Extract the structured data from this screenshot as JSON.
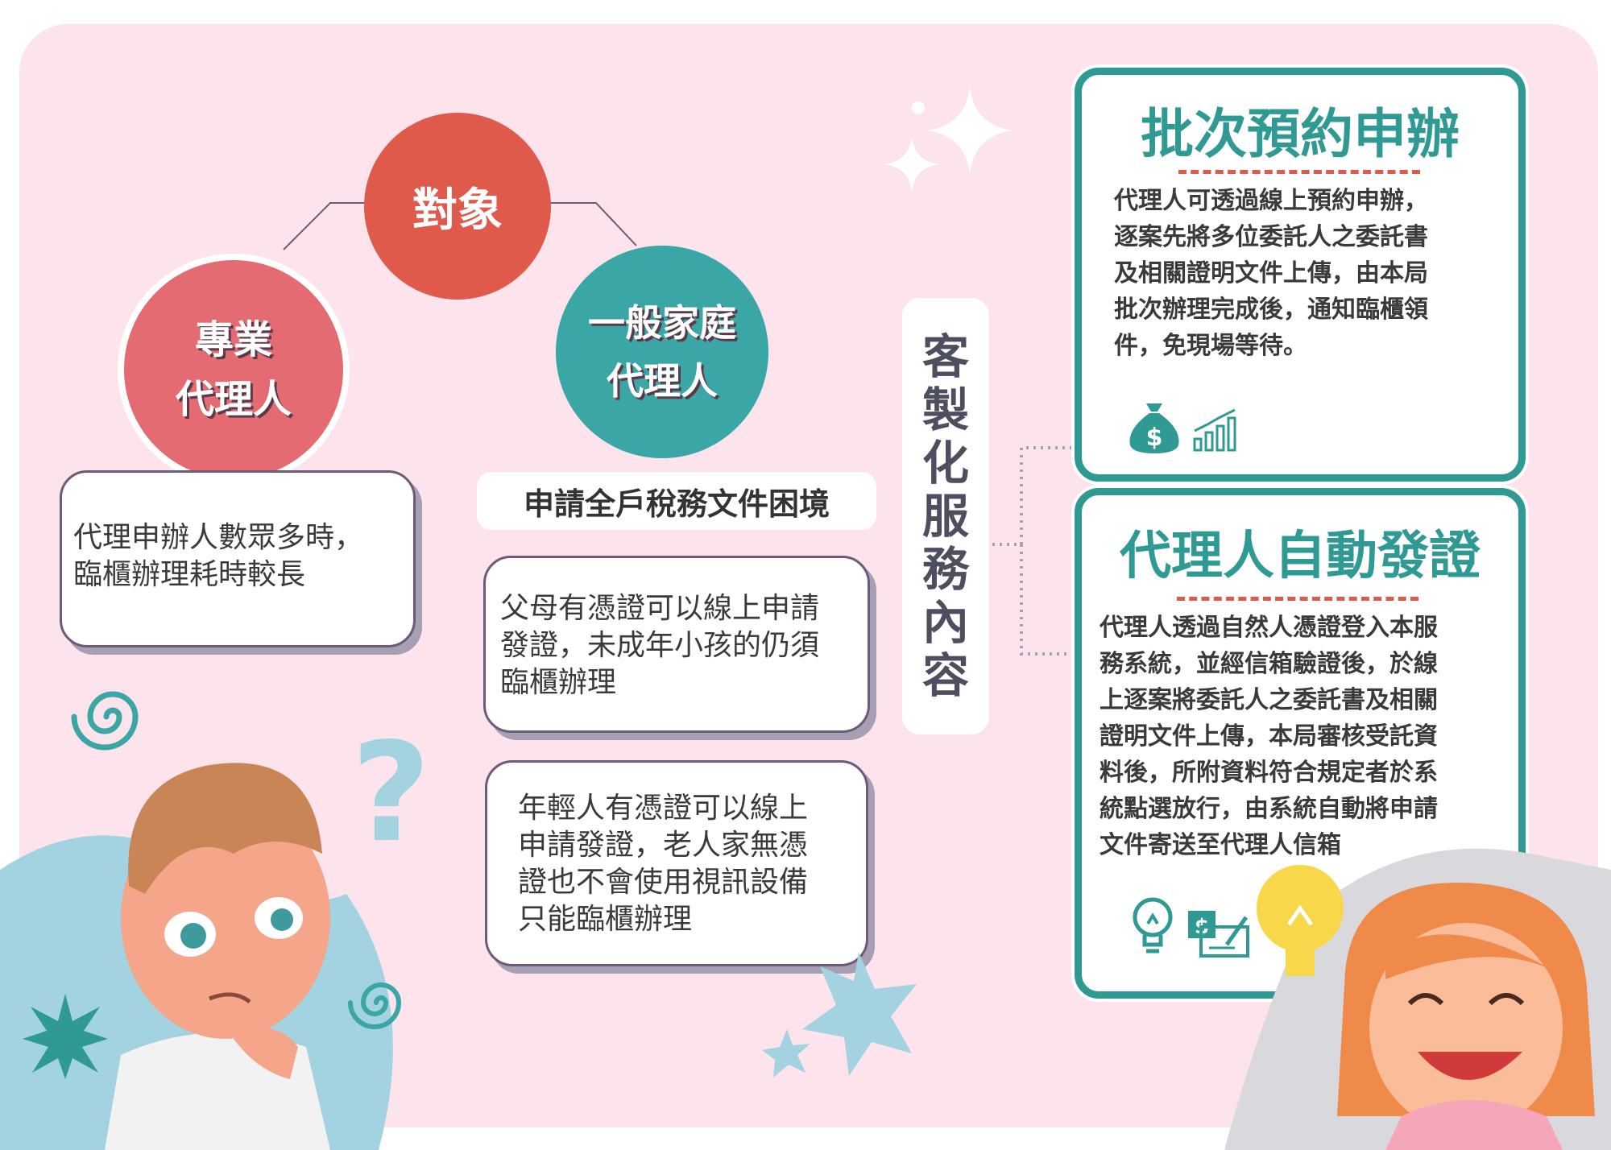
{
  "colors": {
    "background": "#fde4ec",
    "coral": "#e05a4c",
    "rose": "#e56b73",
    "teal": "#3aa6a6",
    "card_border": "#2f9a93",
    "light_blue": "#a3d3e0"
  },
  "diagram": {
    "target": "對象",
    "pro_agent": [
      "專業",
      "代理人"
    ],
    "family_agent": [
      "一般家庭",
      "代理人"
    ],
    "pro_problem": [
      "代理申辦人數眾多時，",
      "臨櫃辦理耗時較長"
    ],
    "family_header": "申請全戶稅務文件困境",
    "family_problem_1": [
      "父母有憑證可以線上申請",
      "發證，未成年小孩的仍須",
      "臨櫃辦理"
    ],
    "family_problem_2": [
      "年輕人有憑證可以線上",
      "申請發證，老人家無憑",
      "證也不會使用視訊設備",
      "只能臨櫃辦理"
    ],
    "service_title": [
      "客",
      "製",
      "化",
      "服",
      "務",
      "內",
      "容"
    ]
  },
  "cards": {
    "batch": {
      "title": "批次預約申辦",
      "lines": [
        "代理人可透過線上預約申辦，",
        "逐案先將多位委託人之委託書",
        "及相關證明文件上傳，由本局",
        "批次辦理完成後，通知臨櫃領",
        "件，免現場等待。"
      ],
      "icons": [
        "money-bag-icon",
        "bar-chart-icon"
      ]
    },
    "auto": {
      "title": "代理人自動發證",
      "lines": [
        "代理人透過自然人憑證登入本服",
        "務系統，並經信箱驗證後，於線",
        "上逐案將委託人之委託書及相關",
        "證明文件上傳，本局審核受託資",
        "料後，所附資料符合規定者於系",
        "統點選放行，由系統自動將申請",
        "文件寄送至代理人信箱"
      ],
      "icons": [
        "lightbulb-icon",
        "cheque-icon"
      ]
    }
  },
  "decor": {
    "money_symbol": "$",
    "question_mark": "?"
  }
}
